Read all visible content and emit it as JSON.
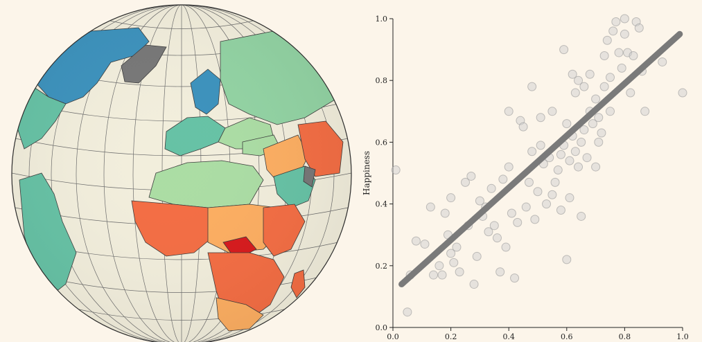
{
  "colors": {
    "background": "#fcf5ea",
    "ocean": "#f2eedc",
    "graticule": "#555555",
    "no_data": "#777777",
    "point": "#cfcfcf",
    "point_stroke": "#9a9a9a",
    "trend_line": "#7a7a7a"
  },
  "globe": {
    "projection": "orthographic",
    "color_scale": [
      "#d7191c",
      "#f46d43",
      "#fdae61",
      "#fee08b",
      "#e6f598",
      "#abdda4",
      "#66c2a5",
      "#3288bd"
    ]
  },
  "chart_data": {
    "type": "scatter",
    "title": "",
    "xlabel": "",
    "ylabel": "Happiness",
    "xlim": [
      0,
      1
    ],
    "ylim": [
      0,
      1
    ],
    "x_ticks": [
      "0.0",
      "0.2",
      "0.4",
      "0.6",
      "0.8",
      "1.0"
    ],
    "y_ticks": [
      "0.0",
      "0.2",
      "0.4",
      "0.6",
      "0.8",
      "1.0"
    ],
    "grid": false,
    "trend_line": {
      "x": [
        0.03,
        0.99
      ],
      "y": [
        0.14,
        0.95
      ]
    },
    "points": [
      [
        0.01,
        0.51
      ],
      [
        0.05,
        0.05
      ],
      [
        0.06,
        0.17
      ],
      [
        0.08,
        0.28
      ],
      [
        0.11,
        0.27
      ],
      [
        0.13,
        0.39
      ],
      [
        0.14,
        0.17
      ],
      [
        0.16,
        0.2
      ],
      [
        0.17,
        0.17
      ],
      [
        0.18,
        0.37
      ],
      [
        0.19,
        0.3
      ],
      [
        0.2,
        0.42
      ],
      [
        0.2,
        0.24
      ],
      [
        0.21,
        0.21
      ],
      [
        0.22,
        0.26
      ],
      [
        0.23,
        0.18
      ],
      [
        0.25,
        0.47
      ],
      [
        0.26,
        0.33
      ],
      [
        0.27,
        0.49
      ],
      [
        0.28,
        0.14
      ],
      [
        0.29,
        0.23
      ],
      [
        0.3,
        0.41
      ],
      [
        0.31,
        0.36
      ],
      [
        0.32,
        0.39
      ],
      [
        0.33,
        0.31
      ],
      [
        0.34,
        0.45
      ],
      [
        0.35,
        0.33
      ],
      [
        0.36,
        0.29
      ],
      [
        0.37,
        0.18
      ],
      [
        0.38,
        0.48
      ],
      [
        0.39,
        0.26
      ],
      [
        0.4,
        0.52
      ],
      [
        0.4,
        0.7
      ],
      [
        0.41,
        0.37
      ],
      [
        0.42,
        0.16
      ],
      [
        0.43,
        0.34
      ],
      [
        0.44,
        0.67
      ],
      [
        0.45,
        0.65
      ],
      [
        0.46,
        0.39
      ],
      [
        0.47,
        0.47
      ],
      [
        0.48,
        0.78
      ],
      [
        0.48,
        0.57
      ],
      [
        0.49,
        0.35
      ],
      [
        0.5,
        0.44
      ],
      [
        0.51,
        0.68
      ],
      [
        0.51,
        0.59
      ],
      [
        0.52,
        0.53
      ],
      [
        0.53,
        0.4
      ],
      [
        0.54,
        0.55
      ],
      [
        0.55,
        0.7
      ],
      [
        0.55,
        0.43
      ],
      [
        0.56,
        0.47
      ],
      [
        0.57,
        0.51
      ],
      [
        0.58,
        0.56
      ],
      [
        0.58,
        0.38
      ],
      [
        0.59,
        0.9
      ],
      [
        0.59,
        0.59
      ],
      [
        0.6,
        0.22
      ],
      [
        0.6,
        0.66
      ],
      [
        0.61,
        0.54
      ],
      [
        0.61,
        0.42
      ],
      [
        0.62,
        0.62
      ],
      [
        0.62,
        0.82
      ],
      [
        0.63,
        0.76
      ],
      [
        0.63,
        0.57
      ],
      [
        0.64,
        0.8
      ],
      [
        0.64,
        0.52
      ],
      [
        0.65,
        0.36
      ],
      [
        0.65,
        0.6
      ],
      [
        0.66,
        0.64
      ],
      [
        0.66,
        0.78
      ],
      [
        0.67,
        0.55
      ],
      [
        0.68,
        0.7
      ],
      [
        0.68,
        0.82
      ],
      [
        0.69,
        0.66
      ],
      [
        0.7,
        0.52
      ],
      [
        0.7,
        0.74
      ],
      [
        0.71,
        0.6
      ],
      [
        0.71,
        0.68
      ],
      [
        0.72,
        0.63
      ],
      [
        0.73,
        0.78
      ],
      [
        0.73,
        0.88
      ],
      [
        0.74,
        0.93
      ],
      [
        0.75,
        0.7
      ],
      [
        0.75,
        0.81
      ],
      [
        0.76,
        0.96
      ],
      [
        0.77,
        0.99
      ],
      [
        0.78,
        0.89
      ],
      [
        0.79,
        0.84
      ],
      [
        0.8,
        1.0
      ],
      [
        0.8,
        0.95
      ],
      [
        0.81,
        0.89
      ],
      [
        0.82,
        0.76
      ],
      [
        0.83,
        0.88
      ],
      [
        0.84,
        0.99
      ],
      [
        0.85,
        0.97
      ],
      [
        0.86,
        0.83
      ],
      [
        0.87,
        0.7
      ],
      [
        0.93,
        0.86
      ],
      [
        1.0,
        0.76
      ]
    ]
  }
}
